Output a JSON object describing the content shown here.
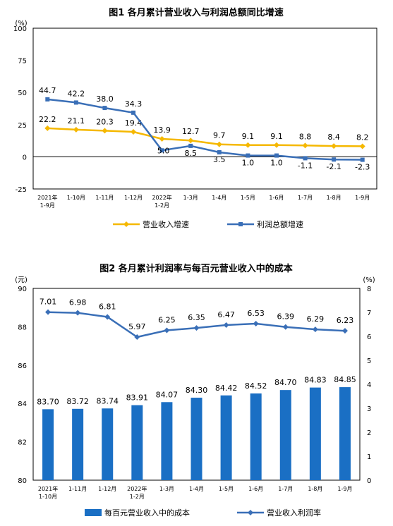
{
  "chart_data": [
    {
      "type": "line",
      "title": "图1  各月累计营业收入与利润总额同比增速",
      "unit": "(%)",
      "ylim": [
        -25,
        100
      ],
      "yticks": [
        "100",
        "75",
        "50",
        "25",
        "0",
        "-25"
      ],
      "categories": [
        "2021年\n1-9月",
        "1-10月",
        "1-11月",
        "1-12月",
        "2022年\n1-2月",
        "1-3月",
        "1-4月",
        "1-5月",
        "1-6月",
        "1-7月",
        "1-8月",
        "1-9月"
      ],
      "series": [
        {
          "name": "营业收入增速",
          "color": "#f5b800",
          "values": [
            22.2,
            21.1,
            20.3,
            19.4,
            13.9,
            12.7,
            9.7,
            9.1,
            9.1,
            8.8,
            8.4,
            8.2
          ],
          "labels": [
            "22.2",
            "21.1",
            "20.3",
            "19.4",
            "13.9",
            "12.7",
            "9.7",
            "9.1",
            "9.1",
            "8.8",
            "8.4",
            "8.2"
          ]
        },
        {
          "name": "利润总额增速",
          "color": "#3a6fb7",
          "values": [
            44.7,
            42.2,
            38.0,
            34.3,
            5.0,
            8.5,
            3.5,
            1.0,
            1.0,
            -1.1,
            -2.1,
            -2.3
          ],
          "labels": [
            "44.7",
            "42.2",
            "38.0",
            "34.3",
            "5.0",
            "8.5",
            "3.5",
            "1.0",
            "1.0",
            "-1.1",
            "-2.1",
            "-2.3"
          ]
        }
      ],
      "legend": "bottom"
    },
    {
      "type": "bar+line",
      "title": "图2  各月累计利润率与每百元营业收入中的成本",
      "left_unit": "(元)",
      "right_unit": "(%)",
      "left_ylim": [
        80,
        90
      ],
      "left_yticks": [
        "90",
        "88",
        "86",
        "84",
        "82",
        "80"
      ],
      "right_ylim": [
        0,
        8
      ],
      "right_yticks": [
        "8",
        "7",
        "6",
        "5",
        "4",
        "3",
        "2",
        "1",
        "0"
      ],
      "categories": [
        "2021年\n1-10月",
        "1-11月",
        "1-12月",
        "2022年\n1-2月",
        "1-3月",
        "1-4月",
        "1-5月",
        "1-6月",
        "1-7月",
        "1-8月",
        "1-9月"
      ],
      "bars": {
        "name": "每百元营业收入中的成本",
        "color": "#1a6fc4",
        "values": [
          83.7,
          83.72,
          83.74,
          83.91,
          84.07,
          84.3,
          84.42,
          84.52,
          84.7,
          84.83,
          84.85
        ],
        "labels": [
          "83.70",
          "83.72",
          "83.74",
          "83.91",
          "84.07",
          "84.30",
          "84.42",
          "84.52",
          "84.70",
          "84.83",
          "84.85"
        ]
      },
      "line": {
        "name": "营业收入利润率",
        "color": "#3a6fb7",
        "values": [
          7.01,
          6.98,
          6.81,
          5.97,
          6.25,
          6.35,
          6.47,
          6.53,
          6.39,
          6.29,
          6.23
        ],
        "labels": [
          "7.01",
          "6.98",
          "6.81",
          "5.97",
          "6.25",
          "6.35",
          "6.47",
          "6.53",
          "6.39",
          "6.29",
          "6.23"
        ]
      },
      "legend": "bottom"
    }
  ]
}
